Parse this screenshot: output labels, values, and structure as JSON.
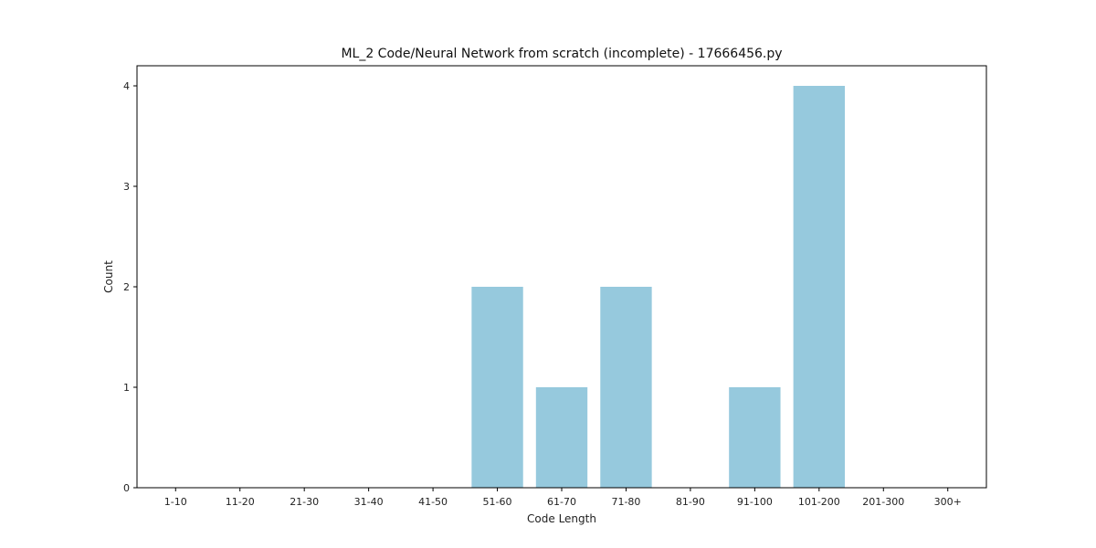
{
  "chart_data": {
    "type": "bar",
    "title": "ML_2 Code/Neural Network from scratch (incomplete) - 17666456.py",
    "xlabel": "Code Length",
    "ylabel": "Count",
    "categories": [
      "1-10",
      "11-20",
      "21-30",
      "31-40",
      "41-50",
      "51-60",
      "61-70",
      "71-80",
      "81-90",
      "91-100",
      "101-200",
      "201-300",
      "300+"
    ],
    "values": [
      0,
      0,
      0,
      0,
      0,
      2,
      1,
      2,
      0,
      1,
      4,
      0,
      0
    ],
    "ylim": [
      0,
      4.2
    ],
    "yticks": [
      0,
      1,
      2,
      3,
      4
    ],
    "bar_color": "#96c9dd",
    "grid": false,
    "legend": "none"
  }
}
